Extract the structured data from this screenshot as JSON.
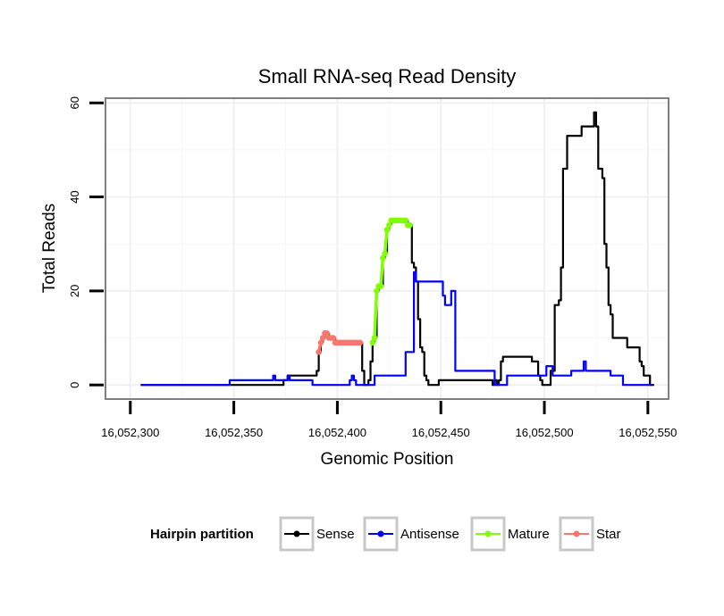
{
  "chart_data": {
    "type": "line",
    "title": "Small RNA-seq Read Density",
    "xlabel": "Genomic Position",
    "ylabel": "Total Reads",
    "xlim": [
      16052288,
      16052560
    ],
    "ylim": [
      -3,
      61
    ],
    "x_ticks": [
      16052300,
      16052350,
      16052400,
      16052450,
      16052500,
      16052550
    ],
    "x_tick_labels": [
      "16,052,300",
      "16,052,350",
      "16,052,400",
      "16,052,450",
      "16,052,500",
      "16,052,550"
    ],
    "y_ticks": [
      0,
      20,
      40,
      60
    ],
    "y_tick_labels": [
      "0",
      "20",
      "40",
      "60"
    ],
    "grid": true,
    "legend": {
      "title": "Hairpin partition",
      "position": "bottom",
      "entries": [
        "Sense",
        "Antisense",
        "Mature",
        "Star"
      ]
    },
    "series": [
      {
        "name": "Sense",
        "color": "#000000",
        "marker": false,
        "points": [
          [
            16052305,
            0
          ],
          [
            16052372,
            0
          ],
          [
            16052374,
            1
          ],
          [
            16052376,
            2
          ],
          [
            16052389,
            2
          ],
          [
            16052390,
            3
          ],
          [
            16052391,
            7
          ],
          [
            16052392,
            9
          ],
          [
            16052393,
            10
          ],
          [
            16052394,
            11
          ],
          [
            16052395,
            11
          ],
          [
            16052396,
            10
          ],
          [
            16052398,
            10
          ],
          [
            16052399,
            9
          ],
          [
            16052411,
            9
          ],
          [
            16052412,
            3
          ],
          [
            16052413,
            0
          ],
          [
            16052414,
            0
          ],
          [
            16052415,
            1
          ],
          [
            16052416,
            5
          ],
          [
            16052417,
            9
          ],
          [
            16052418,
            10
          ],
          [
            16052419,
            20
          ],
          [
            16052420,
            21
          ],
          [
            16052421,
            21
          ],
          [
            16052422,
            27
          ],
          [
            16052423,
            28
          ],
          [
            16052424,
            33
          ],
          [
            16052425,
            34
          ],
          [
            16052426,
            35
          ],
          [
            16052433,
            35
          ],
          [
            16052434,
            34
          ],
          [
            16052435,
            34
          ],
          [
            16052436,
            26
          ],
          [
            16052437,
            25
          ],
          [
            16052438,
            22
          ],
          [
            16052439,
            14
          ],
          [
            16052440,
            8
          ],
          [
            16052441,
            7
          ],
          [
            16052442,
            2
          ],
          [
            16052443,
            1
          ],
          [
            16052444,
            0
          ],
          [
            16052448,
            0
          ],
          [
            16052449,
            1
          ],
          [
            16052474,
            1
          ],
          [
            16052475,
            0
          ],
          [
            16052476,
            1
          ],
          [
            16052477,
            0
          ],
          [
            16052478,
            1
          ],
          [
            16052479,
            5
          ],
          [
            16052480,
            6
          ],
          [
            16052493,
            6
          ],
          [
            16052494,
            5
          ],
          [
            16052496,
            5
          ],
          [
            16052497,
            2
          ],
          [
            16052498,
            1
          ],
          [
            16052499,
            0
          ],
          [
            16052502,
            0
          ],
          [
            16052503,
            3
          ],
          [
            16052505,
            17
          ],
          [
            16052507,
            18
          ],
          [
            16052508,
            25
          ],
          [
            16052509,
            46
          ],
          [
            16052510,
            46
          ],
          [
            16052511,
            53
          ],
          [
            16052517,
            53
          ],
          [
            16052518,
            55
          ],
          [
            16052523,
            55
          ],
          [
            16052524,
            58
          ],
          [
            16052525,
            55
          ],
          [
            16052526,
            46
          ],
          [
            16052528,
            44
          ],
          [
            16052529,
            30
          ],
          [
            16052530,
            25
          ],
          [
            16052531,
            17
          ],
          [
            16052532,
            15
          ],
          [
            16052533,
            10
          ],
          [
            16052539,
            10
          ],
          [
            16052540,
            8
          ],
          [
            16052545,
            8
          ],
          [
            16052546,
            5
          ],
          [
            16052547,
            4
          ],
          [
            16052548,
            2
          ],
          [
            16052550,
            2
          ],
          [
            16052551,
            0
          ],
          [
            16052553,
            0
          ]
        ]
      },
      {
        "name": "Antisense",
        "color": "#0000ff",
        "marker": false,
        "points": [
          [
            16052305,
            0
          ],
          [
            16052347,
            0
          ],
          [
            16052348,
            1
          ],
          [
            16052368,
            1
          ],
          [
            16052369,
            2
          ],
          [
            16052370,
            1
          ],
          [
            16052375,
            1
          ],
          [
            16052376,
            2
          ],
          [
            16052377,
            1
          ],
          [
            16052387,
            1
          ],
          [
            16052388,
            0
          ],
          [
            16052405,
            0
          ],
          [
            16052406,
            1
          ],
          [
            16052407,
            2
          ],
          [
            16052408,
            1
          ],
          [
            16052409,
            0
          ],
          [
            16052417,
            0
          ],
          [
            16052418,
            2
          ],
          [
            16052432,
            2
          ],
          [
            16052433,
            7
          ],
          [
            16052436,
            7
          ],
          [
            16052437,
            24
          ],
          [
            16052438,
            22
          ],
          [
            16052450,
            22
          ],
          [
            16052451,
            19
          ],
          [
            16052452,
            17
          ],
          [
            16052454,
            17
          ],
          [
            16052455,
            20
          ],
          [
            16052456,
            20
          ],
          [
            16052457,
            3
          ],
          [
            16052475,
            3
          ],
          [
            16052476,
            0
          ],
          [
            16052481,
            0
          ],
          [
            16052482,
            2
          ],
          [
            16052500,
            2
          ],
          [
            16052501,
            4
          ],
          [
            16052503,
            4
          ],
          [
            16052504,
            2
          ],
          [
            16052512,
            2
          ],
          [
            16052513,
            3
          ],
          [
            16052518,
            3
          ],
          [
            16052519,
            5
          ],
          [
            16052520,
            3
          ],
          [
            16052531,
            3
          ],
          [
            16052532,
            2
          ],
          [
            16052537,
            2
          ],
          [
            16052538,
            0
          ],
          [
            16052552,
            0
          ]
        ]
      },
      {
        "name": "Mature",
        "color": "#7fff00",
        "marker": true,
        "points": [
          [
            16052417,
            9
          ],
          [
            16052418,
            10
          ],
          [
            16052419,
            20
          ],
          [
            16052420,
            21
          ],
          [
            16052421,
            21
          ],
          [
            16052422,
            27
          ],
          [
            16052423,
            28
          ],
          [
            16052424,
            33
          ],
          [
            16052425,
            34
          ],
          [
            16052426,
            35
          ],
          [
            16052427,
            35
          ],
          [
            16052428,
            35
          ],
          [
            16052429,
            35
          ],
          [
            16052430,
            35
          ],
          [
            16052431,
            35
          ],
          [
            16052432,
            35
          ],
          [
            16052433,
            35
          ],
          [
            16052434,
            34
          ],
          [
            16052435,
            34
          ]
        ]
      },
      {
        "name": "Star",
        "color": "#f8766d",
        "marker": true,
        "points": [
          [
            16052391,
            7
          ],
          [
            16052392,
            9
          ],
          [
            16052393,
            10
          ],
          [
            16052394,
            11
          ],
          [
            16052395,
            11
          ],
          [
            16052396,
            10
          ],
          [
            16052397,
            10
          ],
          [
            16052398,
            10
          ],
          [
            16052399,
            9
          ],
          [
            16052400,
            9
          ],
          [
            16052401,
            9
          ],
          [
            16052402,
            9
          ],
          [
            16052403,
            9
          ],
          [
            16052404,
            9
          ],
          [
            16052405,
            9
          ],
          [
            16052406,
            9
          ],
          [
            16052407,
            9
          ],
          [
            16052408,
            9
          ],
          [
            16052409,
            9
          ],
          [
            16052410,
            9
          ],
          [
            16052411,
            9
          ]
        ]
      }
    ]
  }
}
